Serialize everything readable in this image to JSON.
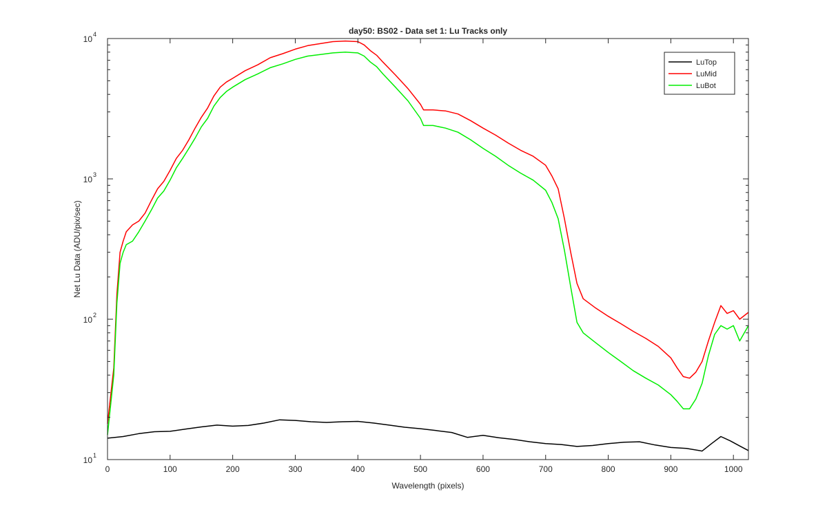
{
  "chart_data": {
    "type": "line",
    "title": "day50: BS02 - Data set 1: Lu Tracks only",
    "xlabel": "Wavelength (pixels)",
    "ylabel": "Net Lu Data (ADU/pix/sec)",
    "xlim": [
      0,
      1024
    ],
    "ylim": [
      10,
      10000
    ],
    "yscale": "log",
    "x_ticks": [
      0,
      100,
      200,
      300,
      400,
      500,
      600,
      700,
      800,
      900,
      1000
    ],
    "y_ticks": [
      {
        "value": 10,
        "base": "10",
        "exp": "1"
      },
      {
        "value": 100,
        "base": "10",
        "exp": "2"
      },
      {
        "value": 1000,
        "base": "10",
        "exp": "3"
      },
      {
        "value": 10000,
        "base": "10",
        "exp": "4"
      }
    ],
    "grid": false,
    "legend_position": "top-right",
    "series": [
      {
        "name": "LuTop",
        "color": "#000000",
        "x": [
          0,
          25,
          50,
          75,
          100,
          125,
          150,
          175,
          200,
          225,
          250,
          275,
          300,
          325,
          350,
          375,
          400,
          425,
          450,
          475,
          500,
          525,
          550,
          575,
          600,
          625,
          650,
          675,
          700,
          725,
          750,
          775,
          800,
          825,
          850,
          875,
          900,
          925,
          950,
          965,
          980,
          995,
          1010,
          1024
        ],
        "y": [
          14.2,
          14.6,
          15.3,
          15.8,
          15.9,
          16.5,
          17.1,
          17.6,
          17.3,
          17.5,
          18.2,
          19.2,
          19.0,
          18.6,
          18.4,
          18.6,
          18.7,
          18.2,
          17.6,
          17.0,
          16.6,
          16.1,
          15.6,
          14.4,
          14.9,
          14.3,
          13.9,
          13.4,
          13.0,
          12.8,
          12.4,
          12.6,
          13.0,
          13.3,
          13.4,
          12.7,
          12.2,
          12.0,
          11.5,
          13.0,
          14.6,
          13.6,
          12.5,
          11.6
        ]
      },
      {
        "name": "LuMid",
        "color": "#ff0000",
        "x": [
          0,
          10,
          15,
          20,
          25,
          30,
          40,
          50,
          60,
          70,
          80,
          90,
          100,
          110,
          120,
          130,
          140,
          150,
          160,
          170,
          180,
          190,
          200,
          220,
          240,
          260,
          280,
          300,
          320,
          340,
          360,
          380,
          400,
          410,
          420,
          430,
          440,
          460,
          480,
          500,
          505,
          520,
          540,
          560,
          580,
          600,
          620,
          640,
          660,
          680,
          700,
          710,
          720,
          730,
          740,
          750,
          760,
          780,
          800,
          820,
          840,
          860,
          880,
          900,
          910,
          920,
          930,
          940,
          950,
          960,
          970,
          980,
          990,
          1000,
          1010,
          1024
        ],
        "y": [
          18,
          45,
          150,
          300,
          360,
          420,
          470,
          500,
          570,
          700,
          850,
          960,
          1150,
          1400,
          1600,
          1900,
          2300,
          2750,
          3200,
          3900,
          4500,
          4900,
          5200,
          5900,
          6500,
          7300,
          7800,
          8400,
          8900,
          9200,
          9500,
          9600,
          9500,
          9000,
          8200,
          7600,
          6800,
          5500,
          4400,
          3400,
          3100,
          3100,
          3050,
          2900,
          2600,
          2300,
          2050,
          1800,
          1600,
          1450,
          1250,
          1050,
          850,
          520,
          300,
          180,
          140,
          120,
          105,
          93,
          82,
          73,
          64,
          53,
          45,
          39,
          38,
          42,
          50,
          70,
          95,
          125,
          110,
          115,
          100,
          112
        ]
      },
      {
        "name": "LuBot",
        "color": "#00ee00",
        "x": [
          0,
          10,
          15,
          20,
          25,
          30,
          40,
          50,
          60,
          70,
          80,
          90,
          100,
          110,
          120,
          130,
          140,
          150,
          160,
          170,
          180,
          190,
          200,
          220,
          240,
          260,
          280,
          300,
          320,
          340,
          360,
          380,
          400,
          410,
          420,
          430,
          440,
          460,
          480,
          500,
          505,
          520,
          540,
          560,
          580,
          600,
          620,
          640,
          660,
          680,
          700,
          710,
          720,
          730,
          740,
          750,
          760,
          780,
          800,
          820,
          840,
          860,
          880,
          900,
          910,
          920,
          930,
          940,
          950,
          960,
          970,
          980,
          990,
          1000,
          1010,
          1024
        ],
        "y": [
          15,
          40,
          130,
          250,
          300,
          340,
          360,
          420,
          500,
          600,
          730,
          820,
          980,
          1200,
          1400,
          1650,
          1950,
          2350,
          2700,
          3300,
          3800,
          4200,
          4500,
          5100,
          5600,
          6200,
          6600,
          7100,
          7500,
          7700,
          7900,
          8000,
          7900,
          7500,
          6800,
          6300,
          5600,
          4500,
          3600,
          2700,
          2400,
          2400,
          2300,
          2150,
          1900,
          1650,
          1450,
          1250,
          1100,
          980,
          830,
          680,
          520,
          310,
          170,
          95,
          80,
          68,
          58,
          50,
          43,
          38,
          34,
          29,
          26,
          23,
          23,
          27,
          35,
          55,
          78,
          90,
          85,
          90,
          70,
          90
        ]
      }
    ]
  }
}
